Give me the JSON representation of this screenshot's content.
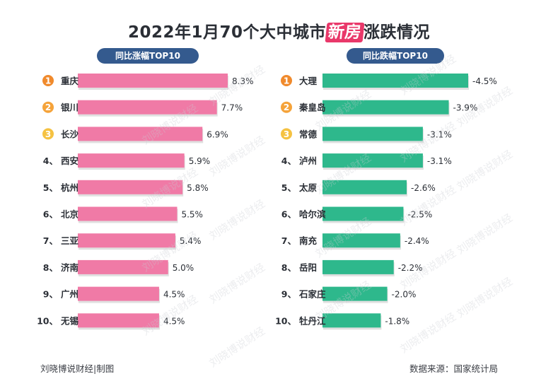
{
  "title_pre": "2022年1月70个大中城市",
  "title_highlight": "新房",
  "title_post": "涨跌情况",
  "left_header": "同比涨幅TOP10",
  "right_header": "同比跌幅TOP10",
  "footer_left": "刘晓博说财经|制图",
  "footer_right": "数据来源：国家统计局",
  "watermark_text": "刘晓博说财经",
  "colors": {
    "rise_bar": "#f07aa6",
    "fall_bar": "#2eb88c",
    "header_pill": "#345a8e",
    "medal_1": "#f08a2c",
    "medal_2": "#f5a33a",
    "medal_3": "#f5c242",
    "title_highlight": "#e9386a"
  },
  "chart_data": [
    {
      "type": "bar",
      "orientation": "horizontal",
      "title": "同比涨幅TOP10",
      "categories": [
        "重庆",
        "银川",
        "长沙",
        "西安",
        "杭州",
        "北京",
        "三亚",
        "济南",
        "广州",
        "无锡"
      ],
      "rank_labels": [
        "",
        "",
        "",
        "4、",
        "5、",
        "6、",
        "7、",
        "8、",
        "9、",
        "10、"
      ],
      "medal_labels": [
        "1",
        "2",
        "3"
      ],
      "values": [
        8.3,
        7.7,
        6.9,
        5.9,
        5.8,
        5.5,
        5.4,
        5.0,
        4.5,
        4.5
      ],
      "value_labels": [
        "8.3%",
        "7.7%",
        "6.9%",
        "5.9%",
        "5.8%",
        "5.5%",
        "5.4%",
        "5.0%",
        "4.5%",
        "4.5%"
      ],
      "unit": "%",
      "xlim": [
        0,
        8.3
      ]
    },
    {
      "type": "bar",
      "orientation": "horizontal",
      "title": "同比跌幅TOP10",
      "categories": [
        "大理",
        "秦皇岛",
        "常德",
        "泸州",
        "太原",
        "哈尔滨",
        "南充",
        "岳阳",
        "石家庄",
        "牡丹江"
      ],
      "rank_labels": [
        "",
        "",
        "",
        "4、",
        "5、",
        "6、",
        "7、",
        "8、",
        "9、",
        "10、"
      ],
      "medal_labels": [
        "1",
        "2",
        "3"
      ],
      "values": [
        -4.5,
        -3.9,
        -3.1,
        -3.1,
        -2.6,
        -2.5,
        -2.4,
        -2.2,
        -2.0,
        -1.8
      ],
      "value_labels": [
        "-4.5%",
        "-3.9%",
        "-3.1%",
        "-3.1%",
        "-2.6%",
        "-2.5%",
        "-2.4%",
        "-2.2%",
        "-2.0%",
        "-1.8%"
      ],
      "unit": "%",
      "xlim": [
        0,
        4.5
      ]
    }
  ]
}
